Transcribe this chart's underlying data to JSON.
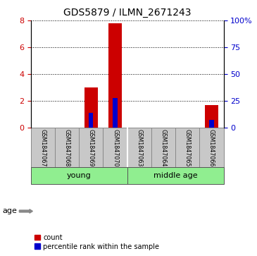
{
  "title": "GDS5879 / ILMN_2671243",
  "samples": [
    "GSM1847067",
    "GSM1847068",
    "GSM1847069",
    "GSM1847070",
    "GSM1847063",
    "GSM1847064",
    "GSM1847065",
    "GSM1847066"
  ],
  "red_bars": [
    0,
    0,
    3.0,
    7.8,
    0,
    0,
    0,
    1.7
  ],
  "blue_bars": [
    0,
    0,
    1.1,
    2.2,
    0,
    0,
    0,
    0.6
  ],
  "left_ylim": [
    0,
    8
  ],
  "right_ylim": [
    0,
    8
  ],
  "left_yticks": [
    0,
    2,
    4,
    6,
    8
  ],
  "right_yticks": [
    0,
    2,
    4,
    6,
    8
  ],
  "right_yticklabels": [
    "0",
    "25",
    "50",
    "75",
    "100%"
  ],
  "groups": [
    {
      "label": "young",
      "start": 0,
      "end": 4
    },
    {
      "label": "middle age",
      "start": 4,
      "end": 8
    }
  ],
  "group_color": "#90EE90",
  "age_label": "age",
  "bar_color_red": "#cc0000",
  "bar_color_blue": "#0000cc",
  "tick_color_left": "#cc0000",
  "tick_color_right": "#0000cc",
  "sample_box_color": "#c8c8c8",
  "grid_color": "#000000",
  "background_color": "#ffffff",
  "legend_count": "count",
  "legend_percentile": "percentile rank within the sample",
  "red_bar_width": 0.55,
  "blue_bar_width": 0.18
}
